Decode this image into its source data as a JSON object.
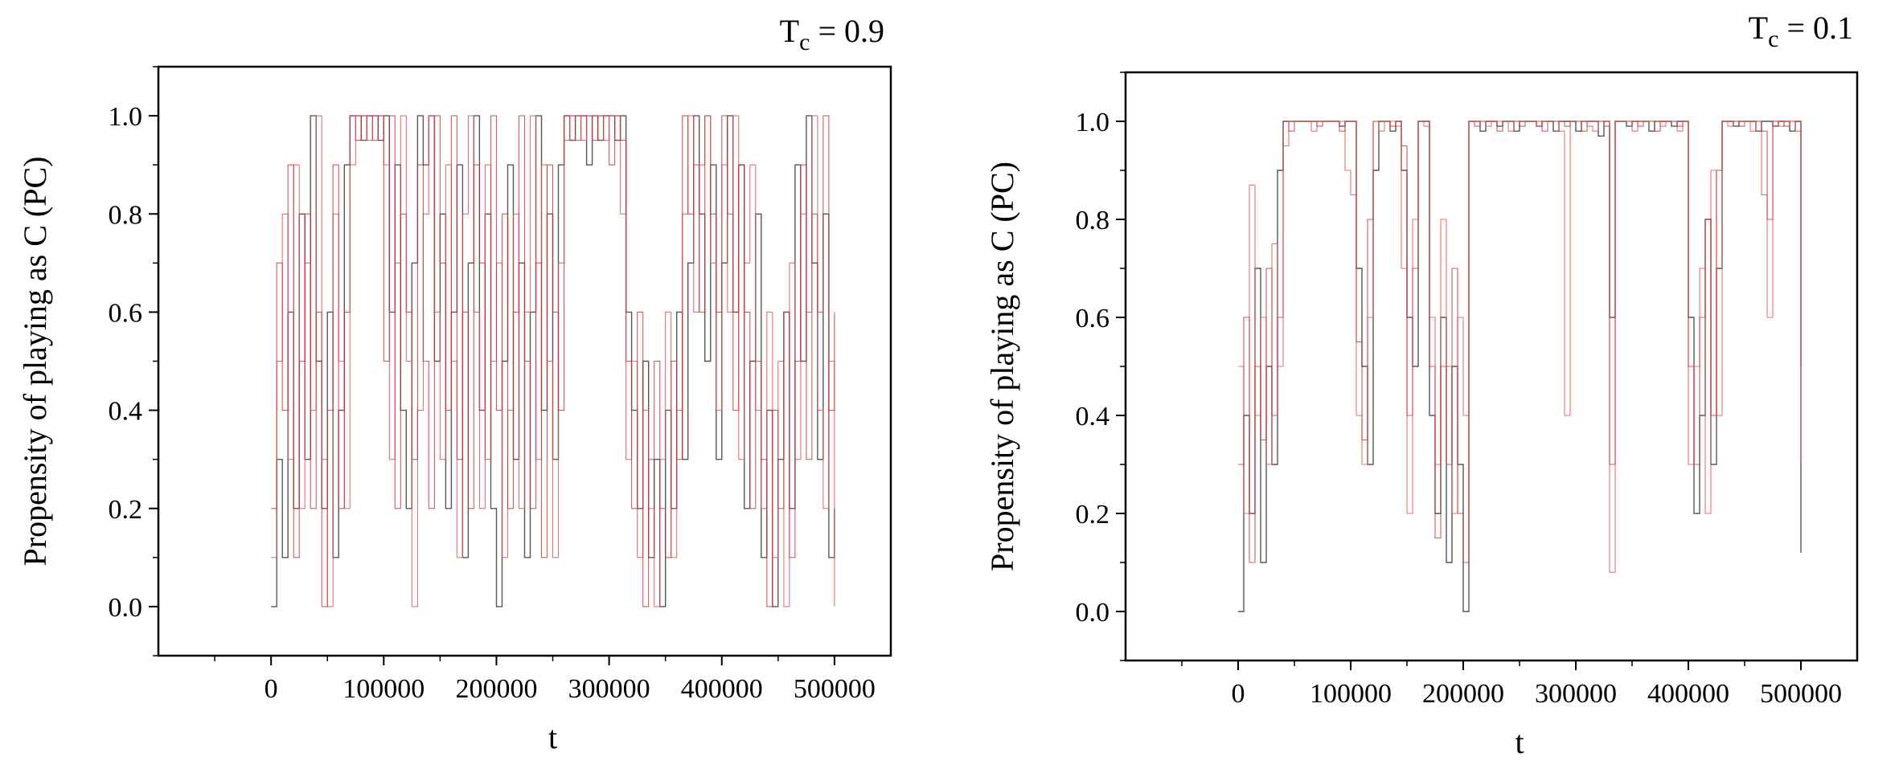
{
  "chart_data": [
    {
      "type": "line",
      "title": "T",
      "title_subscript": "c",
      "title_suffix": " = 0.9",
      "xlabel": "t",
      "ylabel": "Propensity of playing as C (PC)",
      "xlim": [
        -100000,
        550000
      ],
      "ylim": [
        -0.1,
        1.1
      ],
      "x_ticks": [
        0,
        100000,
        200000,
        300000,
        400000,
        500000
      ],
      "x_tick_labels": [
        "0",
        "100000",
        "200000",
        "300000",
        "400000",
        "500000"
      ],
      "y_ticks": [
        0.0,
        0.2,
        0.4,
        0.6,
        0.8,
        1.0
      ],
      "y_tick_labels": [
        "0.0",
        "0.2",
        "0.4",
        "0.6",
        "0.8",
        "1.0"
      ],
      "grid": false,
      "legend": "none",
      "series_colors": [
        "#3a3a3a",
        "#e05050",
        "#c83232"
      ],
      "x": [
        0,
        5000,
        10000,
        15000,
        20000,
        25000,
        30000,
        35000,
        40000,
        45000,
        50000,
        55000,
        60000,
        65000,
        70000,
        75000,
        80000,
        85000,
        90000,
        95000,
        100000,
        105000,
        110000,
        115000,
        120000,
        125000,
        130000,
        135000,
        140000,
        145000,
        150000,
        155000,
        160000,
        165000,
        170000,
        175000,
        180000,
        185000,
        190000,
        195000,
        200000,
        205000,
        210000,
        215000,
        220000,
        225000,
        230000,
        235000,
        240000,
        245000,
        250000,
        255000,
        260000,
        265000,
        270000,
        275000,
        280000,
        285000,
        290000,
        295000,
        300000,
        305000,
        310000,
        315000,
        320000,
        325000,
        330000,
        335000,
        340000,
        345000,
        350000,
        355000,
        360000,
        365000,
        370000,
        375000,
        380000,
        385000,
        390000,
        395000,
        400000,
        405000,
        410000,
        415000,
        420000,
        425000,
        430000,
        435000,
        440000,
        445000,
        450000,
        455000,
        460000,
        465000,
        470000,
        475000,
        480000,
        485000,
        490000,
        495000,
        500000
      ],
      "series": [
        {
          "values": [
            0.0,
            0.3,
            0.1,
            0.6,
            0.2,
            0.8,
            0.3,
            1.0,
            0.5,
            0.2,
            0.6,
            0.1,
            0.4,
            0.9,
            1.0,
            1.0,
            0.95,
            1.0,
            1.0,
            0.95,
            1.0,
            0.6,
            0.9,
            0.4,
            0.2,
            0.7,
            1.0,
            0.9,
            1.0,
            0.5,
            0.8,
            0.2,
            0.6,
            0.9,
            0.1,
            0.7,
            1.0,
            0.4,
            0.8,
            0.2,
            0.0,
            0.5,
            0.9,
            0.3,
            0.7,
            0.1,
            0.6,
            1.0,
            0.4,
            0.8,
            0.3,
            0.9,
            1.0,
            0.95,
            1.0,
            1.0,
            0.9,
            1.0,
            0.95,
            1.0,
            1.0,
            0.95,
            1.0,
            0.6,
            0.4,
            0.2,
            0.5,
            0.1,
            0.3,
            0.0,
            0.4,
            0.2,
            0.6,
            0.3,
            0.7,
            1.0,
            0.8,
            0.5,
            0.9,
            0.3,
            0.7,
            1.0,
            0.6,
            0.9,
            0.2,
            0.5,
            0.8,
            0.1,
            0.4,
            0.0,
            0.3,
            0.6,
            0.2,
            0.9,
            0.5,
            1.0,
            0.7,
            0.3,
            0.8,
            0.1,
            0.2
          ]
        },
        {
          "values": [
            0.1,
            0.5,
            0.8,
            0.3,
            0.9,
            0.2,
            0.7,
            0.4,
            1.0,
            0.3,
            0.0,
            0.8,
            0.5,
            0.2,
            0.9,
            1.0,
            1.0,
            0.95,
            1.0,
            1.0,
            0.9,
            0.3,
            0.7,
            1.0,
            0.5,
            0.0,
            0.4,
            0.8,
            1.0,
            0.6,
            0.3,
            0.9,
            0.5,
            0.1,
            0.8,
            1.0,
            0.6,
            0.2,
            0.9,
            0.5,
            0.7,
            0.1,
            0.4,
            0.8,
            0.2,
            0.6,
            1.0,
            0.3,
            0.9,
            0.5,
            0.1,
            0.7,
            0.95,
            1.0,
            1.0,
            0.95,
            1.0,
            1.0,
            1.0,
            0.95,
            1.0,
            1.0,
            0.8,
            0.3,
            0.5,
            0.1,
            0.4,
            0.2,
            0.0,
            0.3,
            0.6,
            0.1,
            0.4,
            0.8,
            1.0,
            0.6,
            0.9,
            1.0,
            0.7,
            0.4,
            0.9,
            0.6,
            1.0,
            0.3,
            0.7,
            0.9,
            0.4,
            0.2,
            0.6,
            0.1,
            0.5,
            0.0,
            0.7,
            0.3,
            0.8,
            0.6,
            1.0,
            0.4,
            0.2,
            0.5,
            0.0
          ]
        },
        {
          "values": [
            0.2,
            0.7,
            0.4,
            0.9,
            0.1,
            0.5,
            0.8,
            0.2,
            0.6,
            0.0,
            0.4,
            0.9,
            0.2,
            0.6,
            1.0,
            0.95,
            1.0,
            1.0,
            0.95,
            1.0,
            0.5,
            1.0,
            0.2,
            0.8,
            0.6,
            0.3,
            0.9,
            0.5,
            0.2,
            1.0,
            0.7,
            0.4,
            1.0,
            0.3,
            0.6,
            0.2,
            0.9,
            0.7,
            0.3,
            1.0,
            0.4,
            0.8,
            0.2,
            0.6,
            1.0,
            0.5,
            0.2,
            0.7,
            0.1,
            0.9,
            0.6,
            0.4,
            1.0,
            1.0,
            0.95,
            1.0,
            1.0,
            0.95,
            1.0,
            1.0,
            0.9,
            1.0,
            0.95,
            0.5,
            0.2,
            0.6,
            0.0,
            0.3,
            0.5,
            0.2,
            0.1,
            0.5,
            0.3,
            1.0,
            0.8,
            0.9,
            0.6,
            1.0,
            0.8,
            0.6,
            1.0,
            0.8,
            0.4,
            0.9,
            0.6,
            0.2,
            0.5,
            0.3,
            0.0,
            0.4,
            0.2,
            0.6,
            0.1,
            0.5,
            0.9,
            0.3,
            0.8,
            0.6,
            1.0,
            0.4,
            0.6
          ]
        }
      ]
    },
    {
      "type": "line",
      "title": "T",
      "title_subscript": "c",
      "title_suffix": " = 0.1",
      "xlabel": "t",
      "ylabel": "Propensity of playing as C (PC)",
      "xlim": [
        -100000,
        550000
      ],
      "ylim": [
        -0.1,
        1.1
      ],
      "x_ticks": [
        0,
        100000,
        200000,
        300000,
        400000,
        500000
      ],
      "x_tick_labels": [
        "0",
        "100000",
        "200000",
        "300000",
        "400000",
        "500000"
      ],
      "y_ticks": [
        0.0,
        0.2,
        0.4,
        0.6,
        0.8,
        1.0
      ],
      "y_tick_labels": [
        "0.0",
        "0.2",
        "0.4",
        "0.6",
        "0.8",
        "1.0"
      ],
      "grid": false,
      "legend": "none",
      "series_colors": [
        "#3a3a3a",
        "#e05050",
        "#c83232"
      ],
      "x": [
        0,
        5000,
        10000,
        15000,
        20000,
        25000,
        30000,
        35000,
        40000,
        45000,
        50000,
        55000,
        60000,
        65000,
        70000,
        75000,
        80000,
        85000,
        90000,
        95000,
        100000,
        105000,
        110000,
        115000,
        120000,
        125000,
        130000,
        135000,
        140000,
        145000,
        150000,
        155000,
        160000,
        165000,
        170000,
        175000,
        180000,
        185000,
        190000,
        195000,
        200000,
        205000,
        210000,
        215000,
        220000,
        225000,
        230000,
        235000,
        240000,
        245000,
        250000,
        255000,
        260000,
        265000,
        270000,
        275000,
        280000,
        285000,
        290000,
        295000,
        300000,
        305000,
        310000,
        315000,
        320000,
        325000,
        330000,
        335000,
        340000,
        345000,
        350000,
        355000,
        360000,
        365000,
        370000,
        375000,
        380000,
        385000,
        390000,
        395000,
        400000,
        405000,
        410000,
        415000,
        420000,
        425000,
        430000,
        435000,
        440000,
        445000,
        450000,
        455000,
        460000,
        465000,
        470000,
        475000,
        480000,
        485000,
        490000,
        495000,
        500000
      ],
      "series": [
        {
          "values": [
            0.0,
            0.4,
            0.2,
            0.7,
            0.1,
            0.5,
            0.3,
            0.9,
            1.0,
            1.0,
            1.0,
            1.0,
            1.0,
            1.0,
            1.0,
            1.0,
            1.0,
            1.0,
            0.99,
            1.0,
            1.0,
            0.7,
            0.5,
            0.3,
            0.9,
            1.0,
            1.0,
            0.98,
            1.0,
            0.9,
            0.6,
            0.5,
            1.0,
            1.0,
            0.4,
            0.2,
            0.6,
            0.1,
            0.5,
            0.3,
            0.0,
            1.0,
            1.0,
            0.98,
            1.0,
            1.0,
            0.99,
            1.0,
            1.0,
            0.98,
            1.0,
            1.0,
            1.0,
            0.99,
            1.0,
            1.0,
            0.98,
            1.0,
            1.0,
            1.0,
            0.98,
            1.0,
            1.0,
            1.0,
            0.97,
            1.0,
            0.6,
            1.0,
            1.0,
            0.99,
            1.0,
            1.0,
            1.0,
            0.98,
            1.0,
            1.0,
            1.0,
            0.99,
            1.0,
            1.0,
            0.6,
            0.2,
            0.4,
            0.8,
            0.3,
            0.7,
            1.0,
            1.0,
            0.99,
            1.0,
            1.0,
            1.0,
            0.98,
            1.0,
            1.0,
            0.99,
            1.0,
            1.0,
            0.98,
            1.0,
            0.12
          ]
        },
        {
          "values": [
            0.5,
            0.2,
            0.87,
            0.4,
            0.6,
            0.3,
            0.75,
            0.5,
            0.95,
            1.0,
            1.0,
            1.0,
            1.0,
            0.98,
            1.0,
            1.0,
            1.0,
            1.0,
            1.0,
            0.9,
            0.85,
            0.4,
            0.3,
            0.6,
            1.0,
            0.98,
            1.0,
            1.0,
            0.99,
            0.7,
            0.2,
            0.8,
            1.0,
            0.99,
            0.6,
            0.3,
            0.8,
            0.5,
            0.2,
            0.6,
            0.4,
            1.0,
            1.0,
            1.0,
            0.99,
            1.0,
            1.0,
            1.0,
            0.98,
            1.0,
            1.0,
            1.0,
            1.0,
            0.99,
            1.0,
            1.0,
            1.0,
            0.98,
            0.4,
            1.0,
            1.0,
            1.0,
            0.99,
            0.98,
            1.0,
            1.0,
            0.08,
            1.0,
            1.0,
            1.0,
            0.98,
            1.0,
            1.0,
            1.0,
            1.0,
            0.99,
            1.0,
            1.0,
            0.98,
            1.0,
            0.3,
            0.5,
            0.7,
            0.2,
            0.9,
            0.4,
            1.0,
            0.99,
            1.0,
            1.0,
            1.0,
            0.98,
            1.0,
            0.85,
            0.6,
            1.0,
            0.99,
            1.0,
            1.0,
            0.98,
            0.3
          ]
        },
        {
          "values": [
            0.3,
            0.6,
            0.1,
            0.5,
            0.35,
            0.7,
            0.4,
            0.6,
            1.0,
            0.98,
            1.0,
            1.0,
            1.0,
            1.0,
            0.99,
            1.0,
            1.0,
            1.0,
            0.98,
            1.0,
            1.0,
            0.55,
            0.35,
            0.8,
            1.0,
            1.0,
            1.0,
            0.99,
            1.0,
            0.95,
            0.4,
            0.7,
            1.0,
            1.0,
            0.5,
            0.15,
            0.5,
            0.3,
            0.7,
            0.2,
            0.1,
            1.0,
            0.99,
            1.0,
            1.0,
            1.0,
            0.98,
            1.0,
            1.0,
            1.0,
            0.99,
            1.0,
            1.0,
            1.0,
            0.98,
            1.0,
            1.0,
            1.0,
            0.99,
            1.0,
            1.0,
            0.98,
            1.0,
            1.0,
            1.0,
            0.99,
            0.3,
            1.0,
            1.0,
            1.0,
            1.0,
            0.99,
            1.0,
            1.0,
            0.98,
            1.0,
            1.0,
            1.0,
            0.99,
            1.0,
            0.5,
            0.3,
            0.6,
            0.8,
            0.4,
            0.9,
            1.0,
            1.0,
            1.0,
            0.99,
            1.0,
            1.0,
            1.0,
            0.98,
            0.8,
            1.0,
            1.0,
            0.99,
            1.0,
            1.0,
            0.5
          ]
        }
      ]
    }
  ]
}
